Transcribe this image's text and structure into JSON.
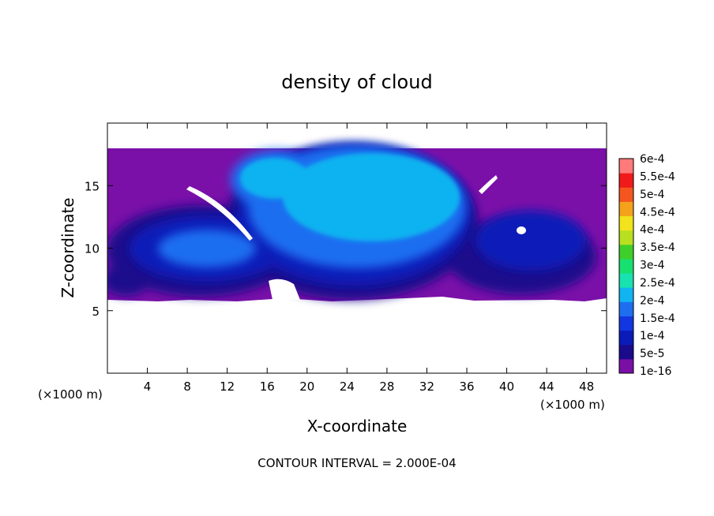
{
  "chart_data": {
    "type": "heatmap",
    "title": "density of cloud",
    "xlabel": "X-coordinate",
    "ylabel": "Z-coordinate",
    "x_unit_left": "(×1000 m)",
    "x_unit_right": "(×1000 m)",
    "footer": "CONTOUR INTERVAL = 2.000E-04",
    "xlim": [
      0,
      50
    ],
    "ylim": [
      0,
      20
    ],
    "x_ticks": [
      4,
      8,
      12,
      16,
      20,
      24,
      28,
      32,
      36,
      40,
      44,
      48
    ],
    "x_tick_labels": [
      "4",
      "8",
      "12",
      "16",
      "20",
      "24",
      "28",
      "32",
      "36",
      "40",
      "44",
      "48"
    ],
    "y_ticks": [
      5,
      10,
      15
    ],
    "y_tick_labels": [
      "5",
      "10",
      "15"
    ],
    "colorbar": {
      "labels": [
        "1e-16",
        "5e-5",
        "1e-4",
        "1.5e-4",
        "2e-4",
        "2.5e-4",
        "3e-4",
        "3.5e-4",
        "4e-4",
        "4.5e-4",
        "5e-4",
        "5.5e-4",
        "6e-4"
      ],
      "colors": [
        "#7a0fa6",
        "#1a0a8c",
        "#0b1bb8",
        "#1237e0",
        "#1f6ef0",
        "#11b3f0",
        "#18e2b0",
        "#18e070",
        "#3fcf2a",
        "#b8e020",
        "#f2e31c",
        "#f4a21b",
        "#f5551f",
        "#f01a1a",
        "#ff7a7a"
      ]
    },
    "field": {
      "description_units": "cloud density",
      "cloud_layer_z": [
        6,
        18
      ],
      "main_cloud_x": [
        15,
        36
      ],
      "main_cloud_peak": 0.00016
    }
  }
}
